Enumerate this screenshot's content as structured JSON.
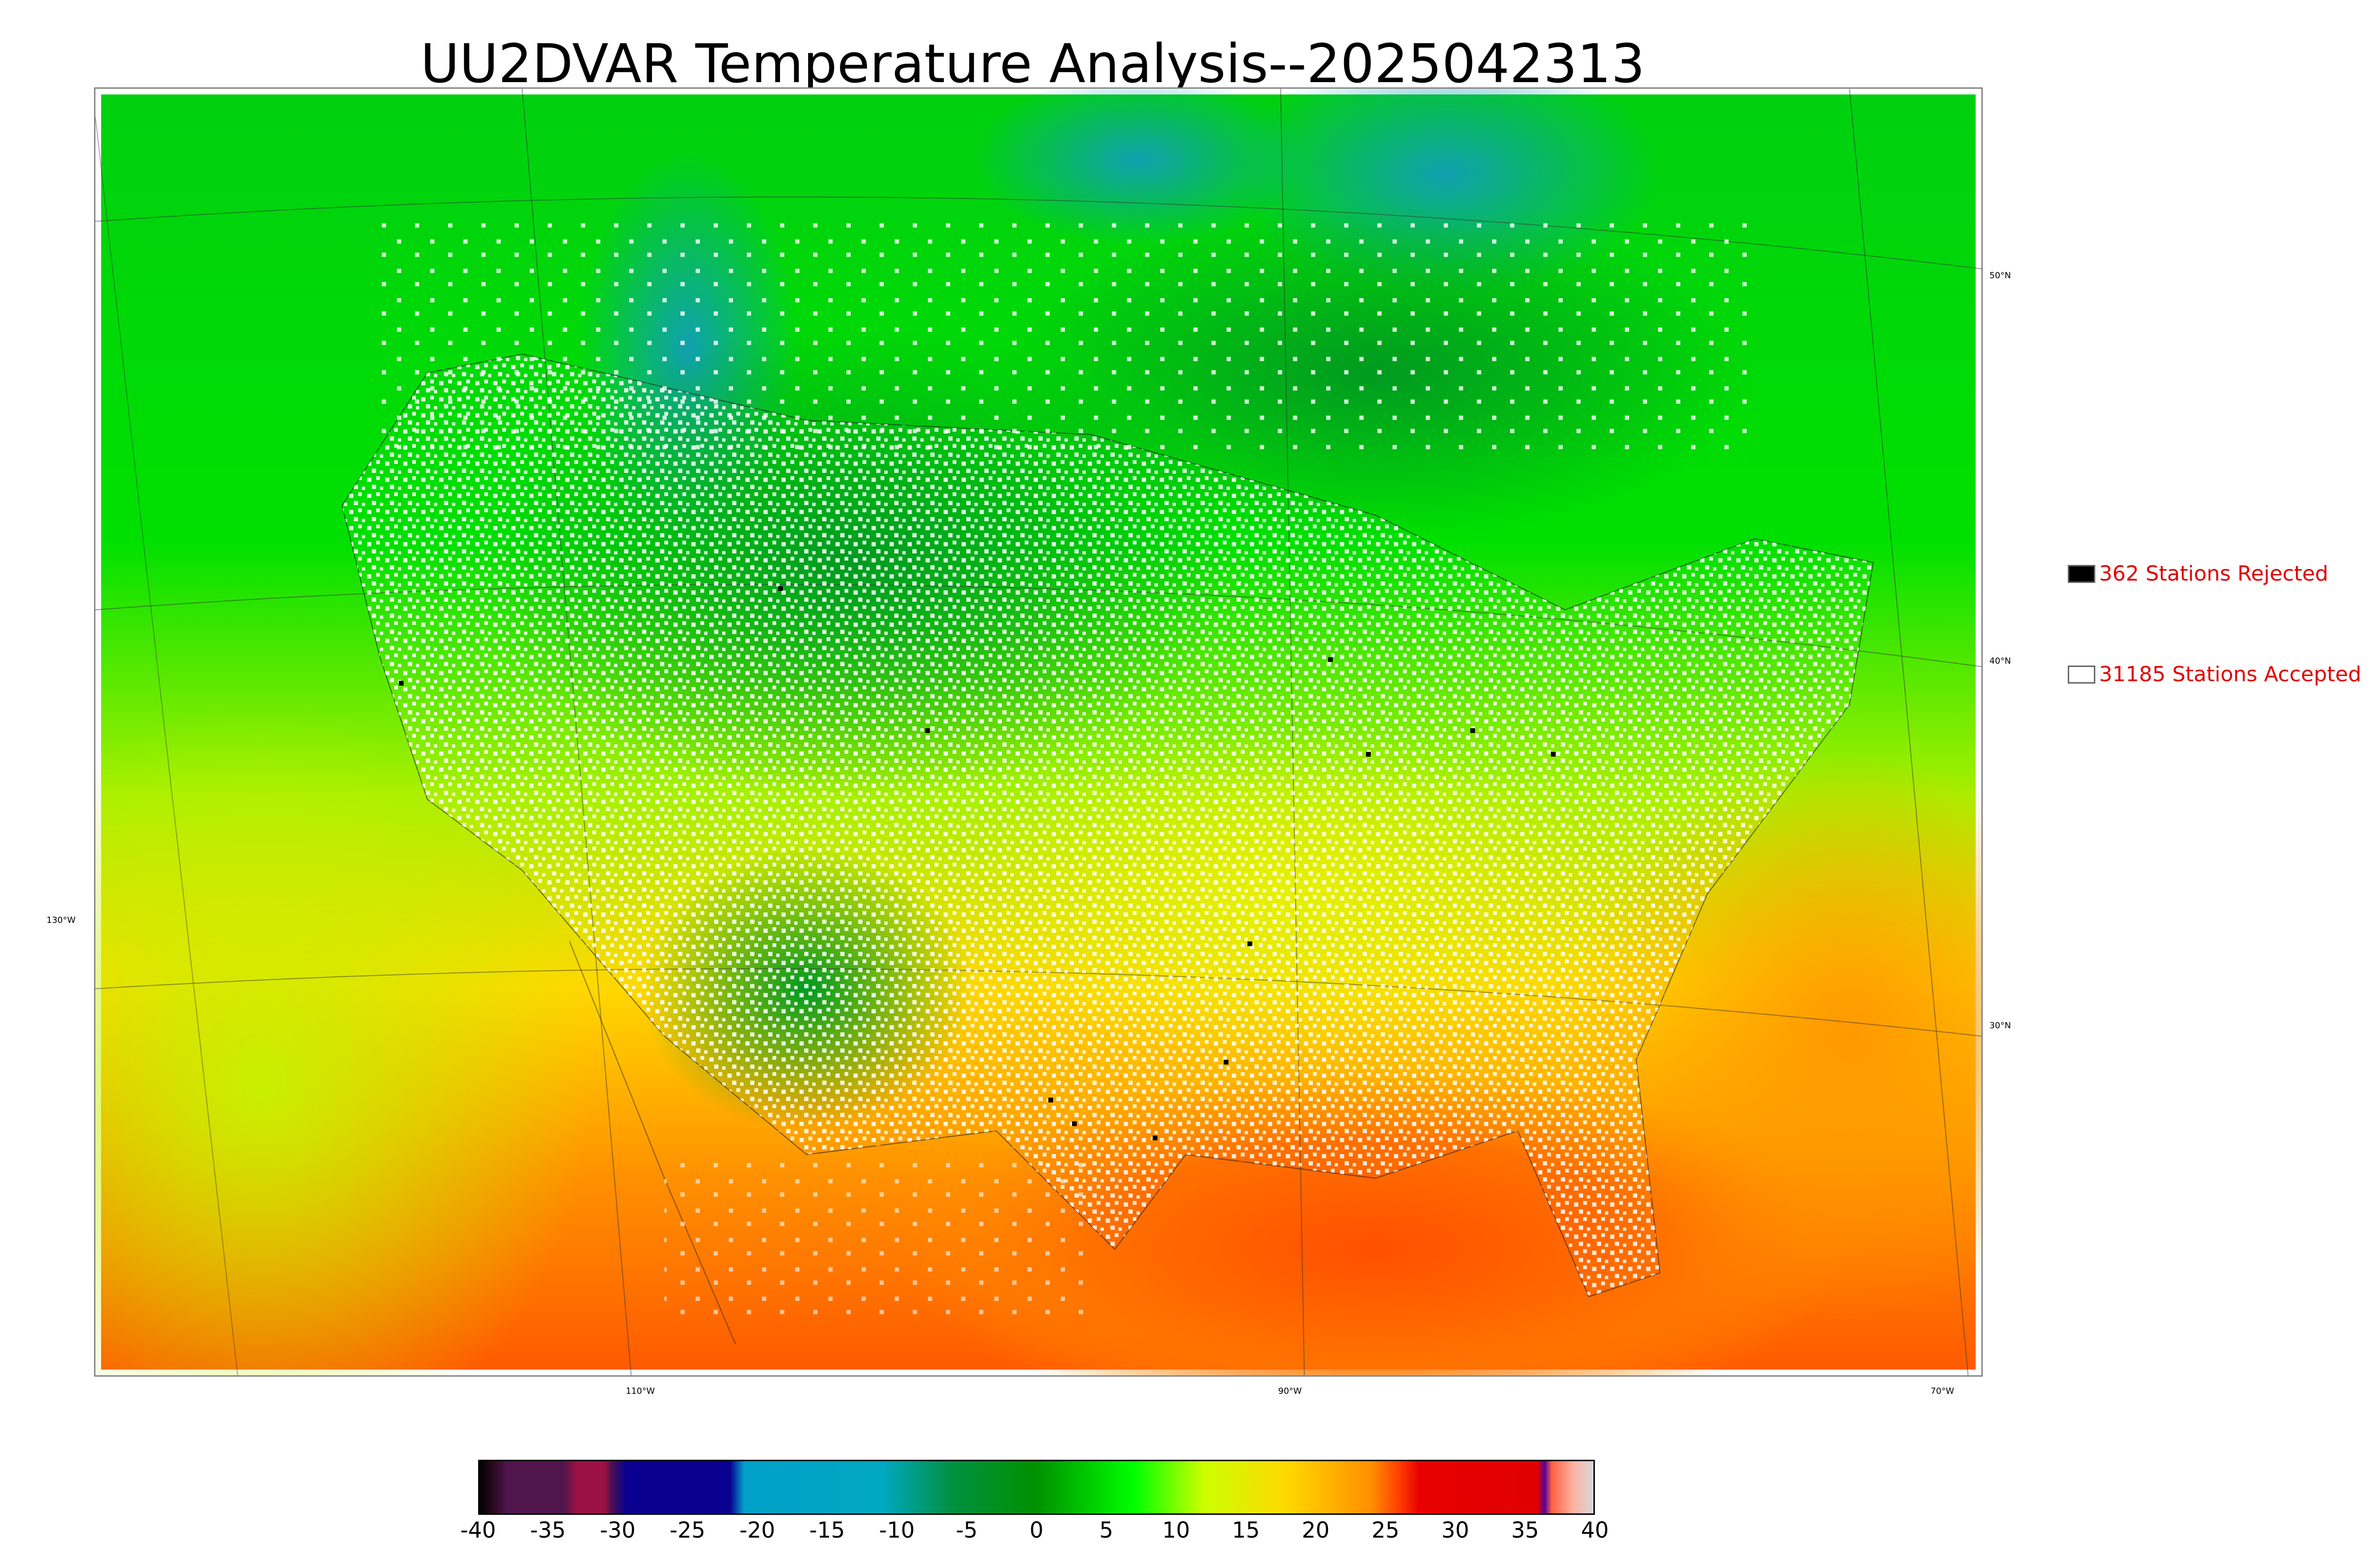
{
  "title": "UU2DVAR Temperature Analysis--2025042313",
  "map": {
    "lon_labels": [
      "110°W",
      "90°W",
      "70°W"
    ],
    "lat_labels_right": [
      "50°N",
      "40°N",
      "30°N"
    ],
    "lat_label_left": "130°W"
  },
  "legend": {
    "rejected": {
      "text": "362 Stations Rejected",
      "swatch_color": "#000000"
    },
    "accepted": {
      "text": "31185 Stations Accepted",
      "swatch_color": "#ffffff"
    },
    "text_color": "#e00000"
  },
  "colorbar": {
    "tick_labels": [
      "-40",
      "-35",
      "-30",
      "-25",
      "-20",
      "-15",
      "-10",
      "-5",
      "0",
      "5",
      "10",
      "15",
      "20",
      "25",
      "30",
      "35",
      "40"
    ],
    "min": -40,
    "max": 40,
    "stops": [
      {
        "value": -40,
        "color": "#000000"
      },
      {
        "value": -39,
        "color": "#2a0a20"
      },
      {
        "value": -38,
        "color": "#50154c"
      },
      {
        "value": -34,
        "color": "#50154c"
      },
      {
        "value": -33,
        "color": "#9a1045"
      },
      {
        "value": -31,
        "color": "#9a1045"
      },
      {
        "value": -30.5,
        "color": "#4a1050"
      },
      {
        "value": -29.5,
        "color": "#0a0090"
      },
      {
        "value": -22,
        "color": "#0a0090"
      },
      {
        "value": -21,
        "color": "#00a0c8"
      },
      {
        "value": -11,
        "color": "#00a8c0"
      },
      {
        "value": -6,
        "color": "#009040"
      },
      {
        "value": 0,
        "color": "#009000"
      },
      {
        "value": 7,
        "color": "#00ff00"
      },
      {
        "value": 12,
        "color": "#ccff00"
      },
      {
        "value": 18,
        "color": "#ffd800"
      },
      {
        "value": 24,
        "color": "#ff9000"
      },
      {
        "value": 26,
        "color": "#ff4000"
      },
      {
        "value": 27.5,
        "color": "#e80000"
      },
      {
        "value": 36,
        "color": "#e00000"
      },
      {
        "value": 36.5,
        "color": "#5000a0"
      },
      {
        "value": 37,
        "color": "#ff6040"
      },
      {
        "value": 38.5,
        "color": "#ffb0a0"
      },
      {
        "value": 40,
        "color": "#d8d8d8"
      }
    ]
  },
  "colors": {
    "cold": "#00a8c0",
    "cool": "#009000",
    "mild": "#00ff00",
    "warm": "#ffd800",
    "hot": "#ff6000"
  }
}
